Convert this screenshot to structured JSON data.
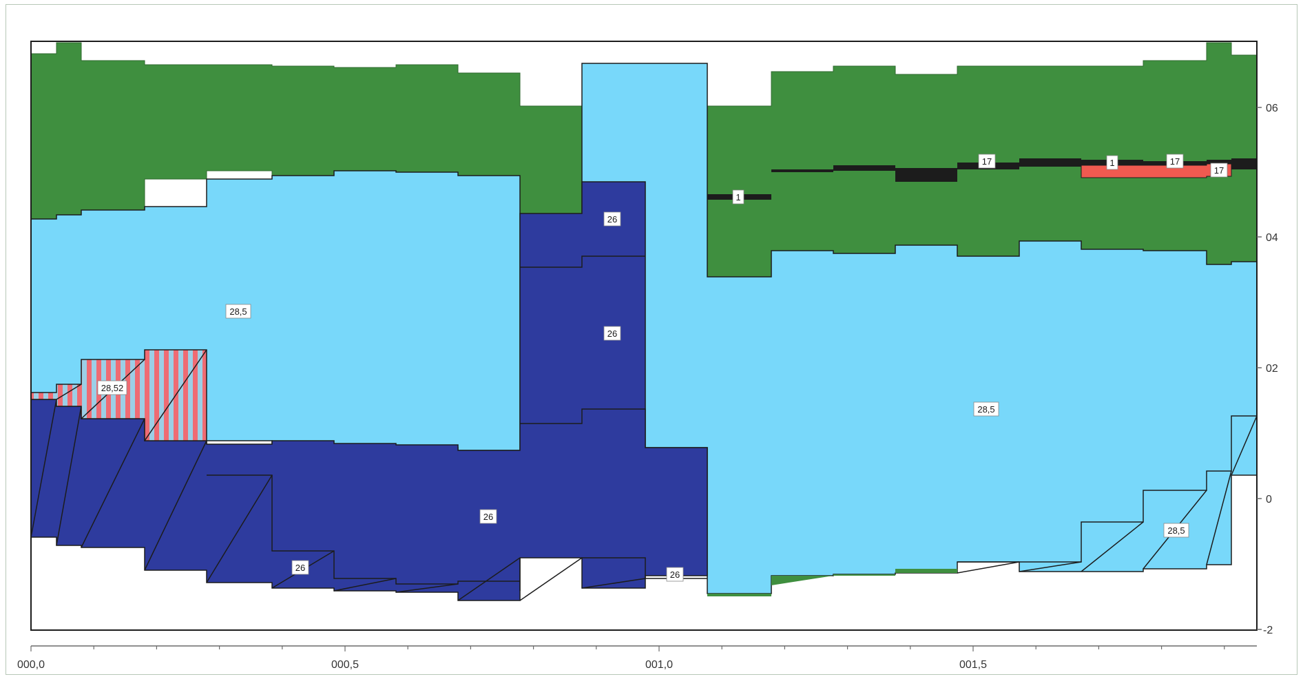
{
  "colors": {
    "green": "#3f8f3f",
    "light_blue": "#78d8fa",
    "dark_blue": "#2e3b9e",
    "red": "#f05a50",
    "black": "#1c1c1c",
    "hatch_pink": "#ef6b73",
    "hatch_blue": "#9ccfe6"
  },
  "axes": {
    "x_ticks": [
      "000,0",
      "000,5",
      "001,0",
      "001,5"
    ],
    "y_ticks": [
      "06",
      "04",
      "02",
      "0",
      "-2"
    ]
  },
  "labels": {
    "l_28_5_left": "28,5",
    "l_28_52": "28,52",
    "l_26_upper": "26",
    "l_26_middle": "26",
    "l_26_lower": "26",
    "l_26_bottom_a": "26",
    "l_26_bottom_b": "26",
    "l_28_5_right": "28,5",
    "l_28_5_corner": "28,5",
    "l_1_a": "1",
    "l_17_a": "17",
    "l_1_b": "1",
    "l_17_b": "17",
    "l_17_c": "17"
  }
}
